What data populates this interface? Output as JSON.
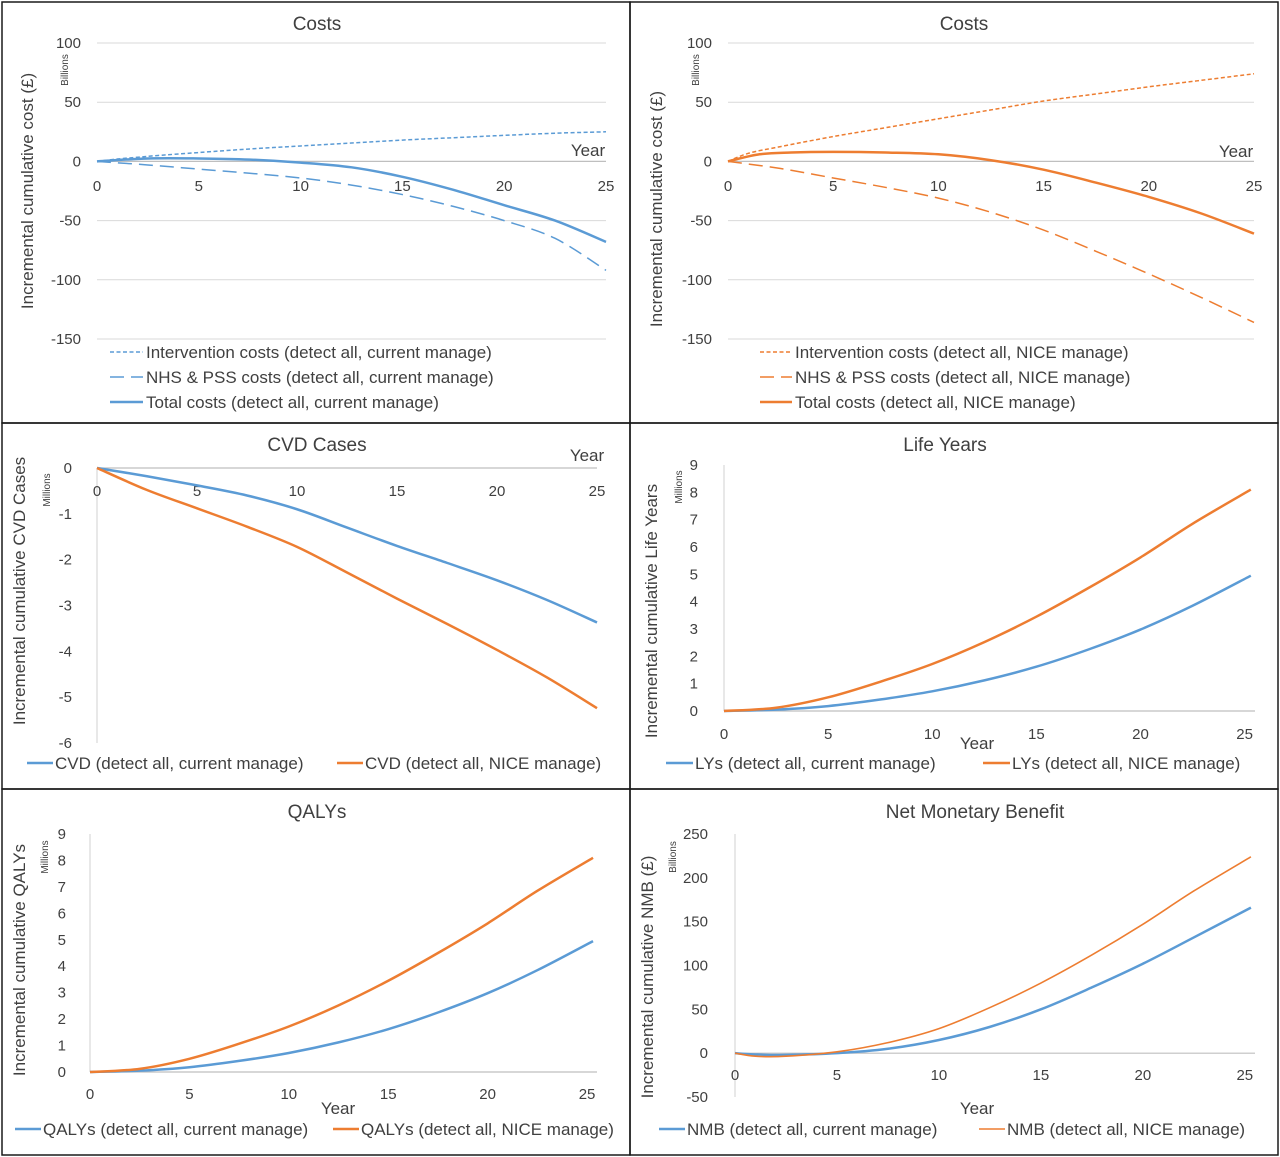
{
  "colors": {
    "blue": "#5b9bd5",
    "orange": "#ed7d31",
    "grid": "#d9d9d9",
    "border": "#1a1a1a",
    "text": "#404040"
  },
  "chart_data": [
    {
      "type": "line",
      "title": "Costs",
      "xlabel": "Year",
      "ylabel": "Incremental cumulative cost (£)",
      "units": "Billions",
      "xlim": [
        0,
        25
      ],
      "xticks": [
        0,
        5,
        10,
        15,
        20,
        25
      ],
      "ylim": [
        -150,
        100
      ],
      "yticks": [
        -150,
        -100,
        -50,
        0,
        50,
        100
      ],
      "grid": "horizontal",
      "legend_position": "bottom",
      "series": [
        {
          "name": "Intervention costs (detect all, current manage)",
          "color": "#5b9bd5",
          "dash": "dotted",
          "width": 1.5,
          "points": [
            [
              0,
              0
            ],
            [
              1,
              2
            ],
            [
              2,
              3.5
            ],
            [
              3,
              5
            ],
            [
              5,
              7.5
            ],
            [
              7.5,
              10.5
            ],
            [
              10,
              13
            ],
            [
              12.5,
              15.5
            ],
            [
              15,
              18
            ],
            [
              17.5,
              20
            ],
            [
              20,
              22
            ],
            [
              22.5,
              23.8
            ],
            [
              25,
              25
            ]
          ]
        },
        {
          "name": "NHS & PSS costs (detect all, current manage)",
          "color": "#5b9bd5",
          "dash": "dashed",
          "width": 1.5,
          "points": [
            [
              0,
              0
            ],
            [
              2.5,
              -3
            ],
            [
              5,
              -6.5
            ],
            [
              7.5,
              -10
            ],
            [
              10,
              -14
            ],
            [
              12.5,
              -20
            ],
            [
              15,
              -28
            ],
            [
              17.5,
              -38
            ],
            [
              20,
              -50
            ],
            [
              22.5,
              -65
            ],
            [
              25,
              -92
            ]
          ]
        },
        {
          "name": "Total costs (detect all, current manage)",
          "color": "#5b9bd5",
          "dash": "solid",
          "width": 2.5,
          "points": [
            [
              0,
              0
            ],
            [
              2.5,
              2.5
            ],
            [
              5,
              2.5
            ],
            [
              7.5,
              1.5
            ],
            [
              10,
              -1
            ],
            [
              12.5,
              -5
            ],
            [
              15,
              -13
            ],
            [
              17.5,
              -24
            ],
            [
              20,
              -37
            ],
            [
              22.5,
              -50
            ],
            [
              25,
              -68
            ]
          ]
        }
      ]
    },
    {
      "type": "line",
      "title": "Costs",
      "xlabel": "Year",
      "ylabel": "Incremental cumulative cost (£)",
      "units": "Billions",
      "xlim": [
        0,
        25
      ],
      "xticks": [
        0,
        5,
        10,
        15,
        20,
        25
      ],
      "ylim": [
        -150,
        100
      ],
      "yticks": [
        -150,
        -100,
        -50,
        0,
        50,
        100
      ],
      "grid": "horizontal",
      "legend_position": "bottom",
      "series": [
        {
          "name": "Intervention costs (detect all, NICE manage)",
          "color": "#ed7d31",
          "dash": "dotted",
          "width": 1.5,
          "points": [
            [
              0,
              0
            ],
            [
              1,
              7
            ],
            [
              2.5,
              12.5
            ],
            [
              5,
              21
            ],
            [
              7.5,
              28.5
            ],
            [
              10,
              36
            ],
            [
              12.5,
              43.5
            ],
            [
              15,
              51
            ],
            [
              17.5,
              57
            ],
            [
              20,
              63
            ],
            [
              22.5,
              68.5
            ],
            [
              25,
              74
            ]
          ]
        },
        {
          "name": "NHS & PSS costs (detect all, NICE manage)",
          "color": "#ed7d31",
          "dash": "dashed",
          "width": 1.5,
          "points": [
            [
              0,
              0
            ],
            [
              2.5,
              -6
            ],
            [
              5,
              -14
            ],
            [
              7.5,
              -22
            ],
            [
              10,
              -31
            ],
            [
              12.5,
              -43
            ],
            [
              15,
              -58
            ],
            [
              17.5,
              -76
            ],
            [
              20,
              -95
            ],
            [
              22.5,
              -115
            ],
            [
              25,
              -136
            ]
          ]
        },
        {
          "name": "Total costs (detect all, NICE manage)",
          "color": "#ed7d31",
          "dash": "solid",
          "width": 2.5,
          "points": [
            [
              0,
              0
            ],
            [
              1.5,
              6
            ],
            [
              3,
              7.5
            ],
            [
              5,
              8
            ],
            [
              7.5,
              7.5
            ],
            [
              10,
              6
            ],
            [
              12.5,
              1
            ],
            [
              15,
              -7
            ],
            [
              17.5,
              -18
            ],
            [
              20,
              -30
            ],
            [
              22.5,
              -44
            ],
            [
              25,
              -61
            ]
          ]
        }
      ]
    },
    {
      "type": "line",
      "title": "CVD Cases",
      "xlabel": "Year",
      "ylabel": "Incremental cumulative CVD Cases",
      "units": "Millions",
      "xlim": [
        0,
        25
      ],
      "xticks": [
        0,
        5,
        10,
        15,
        20,
        25
      ],
      "ylim": [
        -6,
        0
      ],
      "yticks": [
        -6,
        -5,
        -4,
        -3,
        -2,
        -1,
        0
      ],
      "grid": "none",
      "legend_position": "bottom",
      "series": [
        {
          "name": "CVD (detect all, current manage)",
          "color": "#5b9bd5",
          "dash": "solid",
          "width": 2.5,
          "points": [
            [
              0,
              0
            ],
            [
              2.5,
              -0.18
            ],
            [
              5,
              -0.38
            ],
            [
              7.5,
              -0.6
            ],
            [
              10,
              -0.9
            ],
            [
              12.5,
              -1.3
            ],
            [
              15,
              -1.7
            ],
            [
              17.5,
              -2.07
            ],
            [
              20,
              -2.45
            ],
            [
              22.5,
              -2.88
            ],
            [
              25,
              -3.37
            ]
          ]
        },
        {
          "name": "CVD (detect all, NICE manage)",
          "color": "#ed7d31",
          "dash": "solid",
          "width": 2.5,
          "points": [
            [
              0,
              0
            ],
            [
              2.5,
              -0.48
            ],
            [
              5,
              -0.88
            ],
            [
              7.5,
              -1.28
            ],
            [
              10,
              -1.72
            ],
            [
              12.5,
              -2.28
            ],
            [
              15,
              -2.85
            ],
            [
              17.5,
              -3.4
            ],
            [
              20,
              -3.97
            ],
            [
              22.5,
              -4.57
            ],
            [
              25,
              -5.24
            ]
          ]
        }
      ]
    },
    {
      "type": "line",
      "title": "Life Years",
      "xlabel": "Year",
      "ylabel": "Incremental cumulative Life Years",
      "units": "Millions",
      "xlim": [
        0,
        25.5
      ],
      "xticks": [
        0,
        5,
        10,
        15,
        20,
        25
      ],
      "ylim": [
        0,
        9
      ],
      "yticks": [
        0,
        1,
        2,
        3,
        4,
        5,
        6,
        7,
        8,
        9
      ],
      "grid": "none",
      "legend_position": "bottom",
      "series": [
        {
          "name": "LYs (detect all, current manage)",
          "color": "#5b9bd5",
          "dash": "solid",
          "width": 2.5,
          "points": [
            [
              0,
              0
            ],
            [
              2.5,
              0.05
            ],
            [
              5,
              0.18
            ],
            [
              7.5,
              0.42
            ],
            [
              10,
              0.72
            ],
            [
              12.5,
              1.12
            ],
            [
              15,
              1.62
            ],
            [
              17.5,
              2.25
            ],
            [
              20,
              2.98
            ],
            [
              22.5,
              3.85
            ],
            [
              25.3,
              4.95
            ]
          ]
        },
        {
          "name": "LYs (detect all, NICE manage)",
          "color": "#ed7d31",
          "dash": "solid",
          "width": 2.5,
          "points": [
            [
              0,
              0
            ],
            [
              2.5,
              0.12
            ],
            [
              5,
              0.5
            ],
            [
              7.5,
              1.07
            ],
            [
              10,
              1.72
            ],
            [
              12.5,
              2.52
            ],
            [
              15,
              3.45
            ],
            [
              17.5,
              4.5
            ],
            [
              20,
              5.62
            ],
            [
              22.5,
              6.85
            ],
            [
              25.3,
              8.1
            ]
          ]
        }
      ]
    },
    {
      "type": "line",
      "title": "QALYs",
      "xlabel": "Year",
      "ylabel": "Incremental cumulative QALYs",
      "units": "Millions",
      "xlim": [
        0,
        25.5
      ],
      "xticks": [
        0,
        5,
        10,
        15,
        20,
        25
      ],
      "ylim": [
        0,
        9
      ],
      "yticks": [
        0,
        1,
        2,
        3,
        4,
        5,
        6,
        7,
        8,
        9
      ],
      "grid": "none",
      "legend_position": "bottom",
      "series": [
        {
          "name": "QALYs (detect all, current manage)",
          "color": "#5b9bd5",
          "dash": "solid",
          "width": 2.5,
          "points": [
            [
              0,
              0
            ],
            [
              2.5,
              0.05
            ],
            [
              5,
              0.18
            ],
            [
              7.5,
              0.42
            ],
            [
              10,
              0.72
            ],
            [
              12.5,
              1.12
            ],
            [
              15,
              1.62
            ],
            [
              17.5,
              2.25
            ],
            [
              20,
              2.98
            ],
            [
              22.5,
              3.85
            ],
            [
              25.3,
              4.95
            ]
          ]
        },
        {
          "name": "QALYs (detect all, NICE manage)",
          "color": "#ed7d31",
          "dash": "solid",
          "width": 2.5,
          "points": [
            [
              0,
              0
            ],
            [
              2.5,
              0.12
            ],
            [
              5,
              0.5
            ],
            [
              7.5,
              1.07
            ],
            [
              10,
              1.72
            ],
            [
              12.5,
              2.52
            ],
            [
              15,
              3.45
            ],
            [
              17.5,
              4.5
            ],
            [
              20,
              5.62
            ],
            [
              22.5,
              6.85
            ],
            [
              25.3,
              8.1
            ]
          ]
        }
      ]
    },
    {
      "type": "line",
      "title": "Net Monetary Benefit",
      "xlabel": "Year",
      "ylabel": "Incremental cumulative NMB (£)",
      "units": "Billions",
      "xlim": [
        0,
        25.5
      ],
      "xticks": [
        0,
        5,
        10,
        15,
        20,
        25
      ],
      "ylim": [
        -50,
        250
      ],
      "yticks": [
        -50,
        0,
        50,
        100,
        150,
        200,
        250
      ],
      "grid": "none",
      "legend_position": "bottom",
      "series": [
        {
          "name": "NMB (detect all, current manage)",
          "color": "#5b9bd5",
          "dash": "solid",
          "width": 2.5,
          "points": [
            [
              0,
              0
            ],
            [
              1,
              -1.5
            ],
            [
              2.5,
              -2
            ],
            [
              5,
              0
            ],
            [
              7.5,
              5
            ],
            [
              10,
              15
            ],
            [
              12.5,
              30
            ],
            [
              15,
              50
            ],
            [
              17.5,
              75
            ],
            [
              20,
              102
            ],
            [
              22.5,
              132
            ],
            [
              25.3,
              166
            ]
          ]
        },
        {
          "name": "NMB (detect all, NICE manage)",
          "color": "#ed7d31",
          "dash": "solid",
          "width": 1.6,
          "points": [
            [
              0,
              0
            ],
            [
              1,
              -3.5
            ],
            [
              2.5,
              -3.5
            ],
            [
              5,
              1.5
            ],
            [
              7.5,
              12
            ],
            [
              10,
              28
            ],
            [
              12.5,
              52
            ],
            [
              15,
              80
            ],
            [
              17.5,
              112
            ],
            [
              20,
              147
            ],
            [
              22.5,
              185
            ],
            [
              25.3,
              224
            ]
          ]
        }
      ]
    }
  ]
}
